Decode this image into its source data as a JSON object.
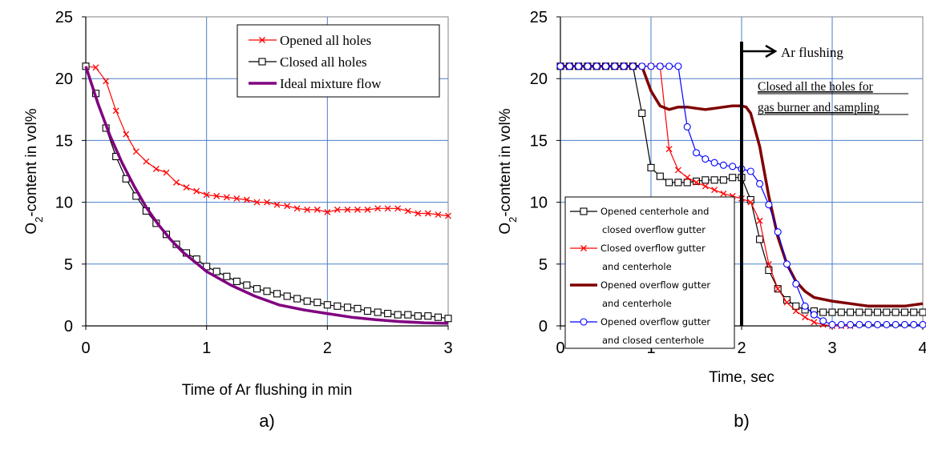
{
  "chart_data": [
    {
      "type": "line",
      "panel_label": "a)",
      "xlabel": "Time of Ar flushing in min",
      "ylabel": "O2-content in vol%",
      "ylabel_main": "O",
      "ylabel_sub": "2",
      "ylabel_rest": "-content in vol%",
      "xlim": [
        0,
        3
      ],
      "ylim": [
        0,
        25
      ],
      "xticks": [
        "0",
        "1",
        "2",
        "3"
      ],
      "yticks": [
        "0",
        "5",
        "10",
        "15",
        "20",
        "25"
      ],
      "grid": true,
      "legend_position": "top-right",
      "series": [
        {
          "name": "Opened all holes",
          "color": "#ff0000",
          "marker": "x",
          "x": [
            0,
            0.083,
            0.167,
            0.25,
            0.333,
            0.417,
            0.5,
            0.583,
            0.667,
            0.75,
            0.833,
            0.917,
            1.0,
            1.083,
            1.167,
            1.25,
            1.333,
            1.417,
            1.5,
            1.583,
            1.667,
            1.75,
            1.833,
            1.917,
            2.0,
            2.083,
            2.167,
            2.25,
            2.333,
            2.417,
            2.5,
            2.583,
            2.667,
            2.75,
            2.833,
            2.917,
            3.0
          ],
          "y": [
            21.0,
            20.9,
            19.8,
            17.4,
            15.5,
            14.1,
            13.3,
            12.7,
            12.4,
            11.6,
            11.2,
            10.9,
            10.6,
            10.5,
            10.4,
            10.3,
            10.2,
            10.0,
            10.0,
            9.8,
            9.7,
            9.5,
            9.4,
            9.4,
            9.2,
            9.4,
            9.4,
            9.4,
            9.4,
            9.5,
            9.5,
            9.5,
            9.3,
            9.1,
            9.1,
            9.0,
            8.9
          ]
        },
        {
          "name": "Closed all holes",
          "color": "#000000",
          "marker": "square",
          "x": [
            0,
            0.083,
            0.167,
            0.25,
            0.333,
            0.417,
            0.5,
            0.583,
            0.667,
            0.75,
            0.833,
            0.917,
            1.0,
            1.083,
            1.167,
            1.25,
            1.333,
            1.417,
            1.5,
            1.583,
            1.667,
            1.75,
            1.833,
            1.917,
            2.0,
            2.083,
            2.167,
            2.25,
            2.333,
            2.417,
            2.5,
            2.583,
            2.667,
            2.75,
            2.833,
            2.917,
            3.0
          ],
          "y": [
            21.0,
            18.8,
            16.0,
            13.7,
            11.9,
            10.5,
            9.3,
            8.3,
            7.4,
            6.6,
            5.9,
            5.4,
            4.8,
            4.4,
            4.0,
            3.6,
            3.3,
            3.0,
            2.8,
            2.6,
            2.4,
            2.2,
            2.0,
            1.9,
            1.7,
            1.6,
            1.5,
            1.4,
            1.2,
            1.1,
            1.0,
            0.9,
            0.9,
            0.8,
            0.8,
            0.7,
            0.6
          ]
        },
        {
          "name": "Ideal mixture flow",
          "color": "#800080",
          "marker": "none",
          "x": [
            0,
            0.1,
            0.2,
            0.3,
            0.4,
            0.5,
            0.6,
            0.7,
            0.8,
            0.9,
            1.0,
            1.2,
            1.4,
            1.6,
            1.8,
            2.0,
            2.2,
            2.4,
            2.6,
            2.8,
            3.0
          ],
          "y": [
            21.0,
            18.0,
            15.4,
            13.2,
            11.3,
            9.6,
            8.2,
            7.0,
            6.0,
            5.2,
            4.4,
            3.3,
            2.4,
            1.7,
            1.3,
            1.0,
            0.7,
            0.5,
            0.35,
            0.25,
            0.2
          ]
        }
      ]
    },
    {
      "type": "line",
      "panel_label": "b)",
      "xlabel": "Time, sec",
      "ylabel": "O2-content in vol%",
      "ylabel_main": "O",
      "ylabel_sub": "2",
      "ylabel_rest": "-content in vol%",
      "xlim": [
        0,
        4
      ],
      "ylim": [
        0,
        25
      ],
      "xticks": [
        "0",
        "1",
        "2",
        "3",
        "4"
      ],
      "yticks": [
        "0",
        "5",
        "10",
        "15",
        "20",
        "25"
      ],
      "grid": true,
      "legend_position": "bottom-left",
      "annotations": {
        "arrow_label": "Ar flushing",
        "arrow_x": 2.0,
        "note_line1": "Closed all the holes for",
        "note_line2": "gas burner and sampling"
      },
      "series": [
        {
          "name": "Opened centerhole and closed overflow gutter",
          "legend_lines": [
            "Opened centerhole and",
            "closed overflow gutter"
          ],
          "color": "#000000",
          "marker": "square",
          "x": [
            0,
            0.1,
            0.2,
            0.3,
            0.4,
            0.5,
            0.6,
            0.7,
            0.8,
            0.9,
            1.0,
            1.1,
            1.2,
            1.3,
            1.4,
            1.5,
            1.6,
            1.7,
            1.8,
            1.9,
            2.0,
            2.1,
            2.2,
            2.3,
            2.4,
            2.5,
            2.6,
            2.7,
            2.8,
            2.9,
            3.0,
            3.1,
            3.2,
            3.3,
            3.4,
            3.5,
            3.6,
            3.7,
            3.8,
            3.9,
            4.0
          ],
          "y": [
            21.0,
            21.0,
            21.0,
            21.0,
            21.0,
            21.0,
            21.0,
            21.0,
            21.0,
            17.2,
            12.8,
            12.1,
            11.6,
            11.6,
            11.6,
            11.7,
            11.8,
            11.8,
            11.8,
            12.0,
            12.0,
            10.2,
            7.0,
            4.5,
            3.0,
            2.1,
            1.6,
            1.3,
            1.2,
            1.1,
            1.1,
            1.1,
            1.1,
            1.1,
            1.1,
            1.1,
            1.1,
            1.1,
            1.1,
            1.1,
            1.1
          ]
        },
        {
          "name": "Closed overflow gutter and centerhole",
          "legend_lines": [
            "Closed overflow gutter",
            "and centerhole"
          ],
          "color": "#ff0000",
          "marker": "x",
          "x": [
            0,
            0.1,
            0.2,
            0.3,
            0.4,
            0.5,
            0.6,
            0.7,
            0.8,
            0.9,
            1.0,
            1.1,
            1.2,
            1.3,
            1.4,
            1.5,
            1.6,
            1.7,
            1.8,
            1.9,
            2.0,
            2.1,
            2.2,
            2.3,
            2.4,
            2.5,
            2.6,
            2.7,
            2.8,
            2.9,
            3.0,
            3.1,
            3.2
          ],
          "y": [
            21.0,
            21.0,
            21.0,
            21.0,
            21.0,
            21.0,
            21.0,
            21.0,
            21.0,
            21.0,
            21.0,
            21.0,
            14.3,
            12.6,
            12.0,
            11.6,
            11.3,
            11.0,
            10.7,
            10.5,
            10.3,
            10.0,
            8.5,
            5.0,
            3.0,
            1.9,
            1.2,
            0.7,
            0.3,
            0.1,
            0.0,
            0.0,
            0.0
          ]
        },
        {
          "name": "Opened overflow gutter and centerhole",
          "legend_lines": [
            "Opened overflow gutter",
            "and centerhole"
          ],
          "color": "#7f0000",
          "marker": "none",
          "x": [
            0,
            0.5,
            0.9,
            1.0,
            1.1,
            1.2,
            1.3,
            1.4,
            1.5,
            1.6,
            1.7,
            1.8,
            1.9,
            2.0,
            2.05,
            2.1,
            2.2,
            2.3,
            2.4,
            2.5,
            2.6,
            2.7,
            2.8,
            3.0,
            3.2,
            3.4,
            3.6,
            3.8,
            4.0
          ],
          "y": [
            21.0,
            21.0,
            21.0,
            19.0,
            17.8,
            17.5,
            17.7,
            17.7,
            17.6,
            17.5,
            17.6,
            17.7,
            17.8,
            17.8,
            17.7,
            17.2,
            14.5,
            10.5,
            7.2,
            5.0,
            3.6,
            2.8,
            2.3,
            2.0,
            1.8,
            1.6,
            1.6,
            1.6,
            1.8
          ]
        },
        {
          "name": "Opened overflow gutter and closed centerhole",
          "legend_lines": [
            "Opened overflow gutter",
            "and closed centerhole"
          ],
          "color": "#0000ff",
          "marker": "circle",
          "x": [
            0,
            0.1,
            0.2,
            0.3,
            0.4,
            0.5,
            0.6,
            0.7,
            0.8,
            0.9,
            1.0,
            1.1,
            1.2,
            1.3,
            1.4,
            1.5,
            1.6,
            1.7,
            1.8,
            1.9,
            2.0,
            2.1,
            2.2,
            2.3,
            2.4,
            2.5,
            2.6,
            2.7,
            2.8,
            2.9,
            3.0,
            3.1,
            3.2,
            3.3,
            3.4,
            3.5,
            3.6,
            3.7,
            3.8,
            3.9,
            4.0
          ],
          "y": [
            21.0,
            21.0,
            21.0,
            21.0,
            21.0,
            21.0,
            21.0,
            21.0,
            21.0,
            21.0,
            21.0,
            21.0,
            21.0,
            21.0,
            16.1,
            14.0,
            13.5,
            13.2,
            13.0,
            12.9,
            12.7,
            12.5,
            11.5,
            9.8,
            7.6,
            5.0,
            3.4,
            1.6,
            0.9,
            0.4,
            0.1,
            0.1,
            0.1,
            0.1,
            0.1,
            0.1,
            0.1,
            0.1,
            0.1,
            0.1,
            0.1
          ]
        }
      ]
    }
  ]
}
